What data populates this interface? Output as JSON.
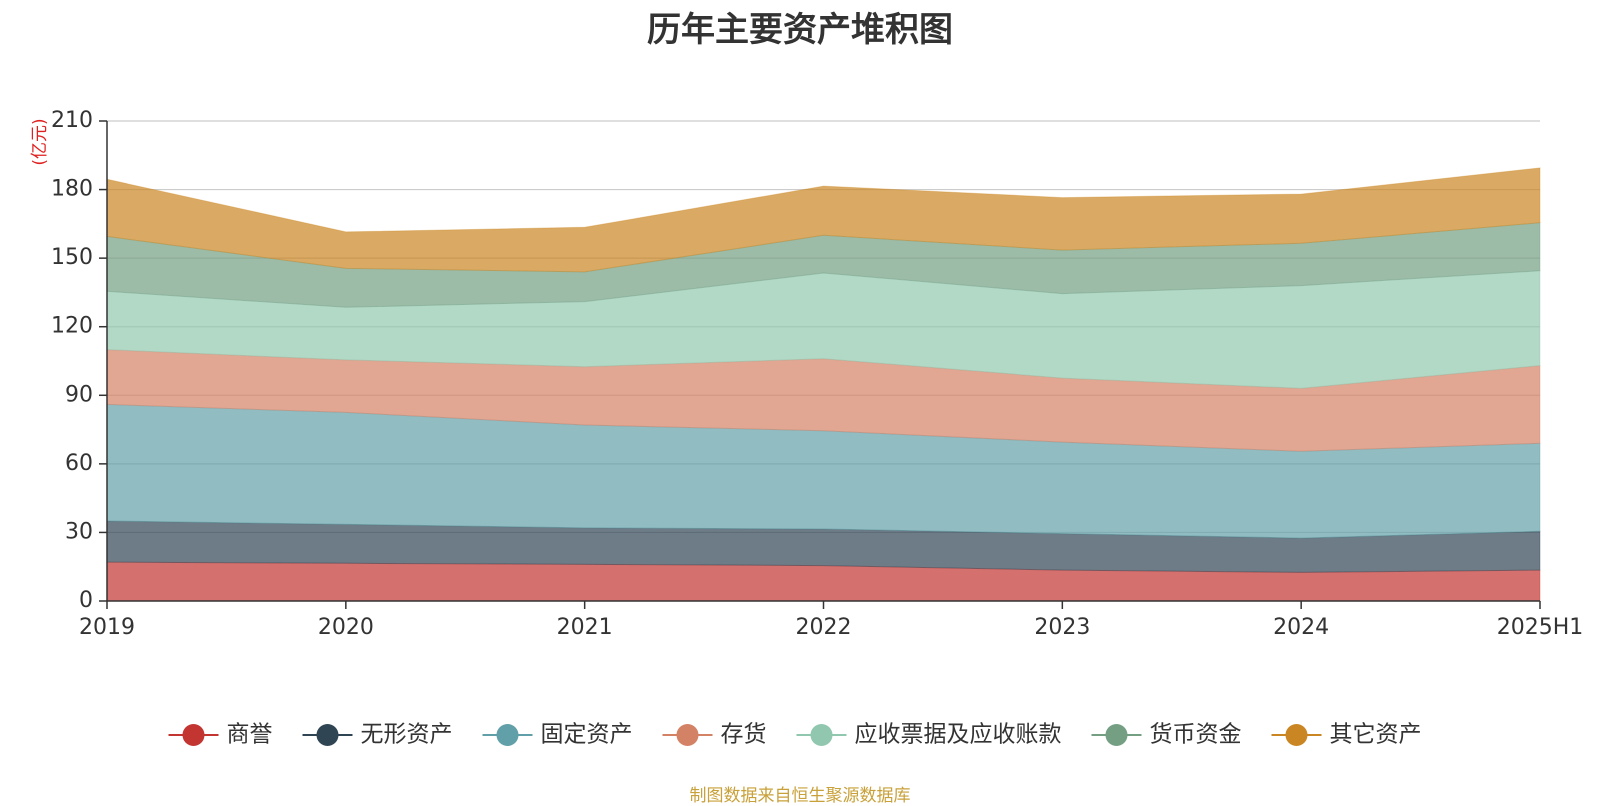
{
  "chart_data": {
    "type": "area",
    "stacked": true,
    "title": "历年主要资产堆积图",
    "unit_label": "(亿元)",
    "categories": [
      "2019",
      "2020",
      "2021",
      "2022",
      "2023",
      "2024",
      "2025H1"
    ],
    "ylim": [
      0,
      210
    ],
    "yticks": [
      0,
      30,
      60,
      90,
      120,
      150,
      180,
      210
    ],
    "grid": true,
    "legend_position": "bottom",
    "series": [
      {
        "name": "商誉",
        "color": "#c23531",
        "values": [
          17,
          16.5,
          16,
          15.5,
          13.5,
          12.5,
          13.5
        ]
      },
      {
        "name": "无形资产",
        "color": "#2f4554",
        "values": [
          18,
          17,
          16,
          16,
          16,
          15,
          17
        ]
      },
      {
        "name": "固定资产",
        "color": "#61a0a8",
        "values": [
          51,
          49,
          45,
          43,
          40,
          38,
          38.5
        ]
      },
      {
        "name": "存货",
        "color": "#d48265",
        "values": [
          24,
          23,
          25.5,
          31.5,
          28,
          27.5,
          34
        ]
      },
      {
        "name": "应收票据及应收账款",
        "color": "#91c7ae",
        "values": [
          25.5,
          23,
          28.5,
          37.5,
          37,
          45,
          41.5
        ]
      },
      {
        "name": "货币资金",
        "color": "#749f83",
        "values": [
          24,
          17,
          13,
          16.5,
          19,
          18.5,
          21
        ]
      },
      {
        "name": "其它资产",
        "color": "#ca8622",
        "values": [
          25,
          16,
          19.5,
          21.5,
          23,
          21.5,
          24
        ]
      }
    ]
  },
  "footer": {
    "source": "制图数据来自恒生聚源数据库"
  }
}
